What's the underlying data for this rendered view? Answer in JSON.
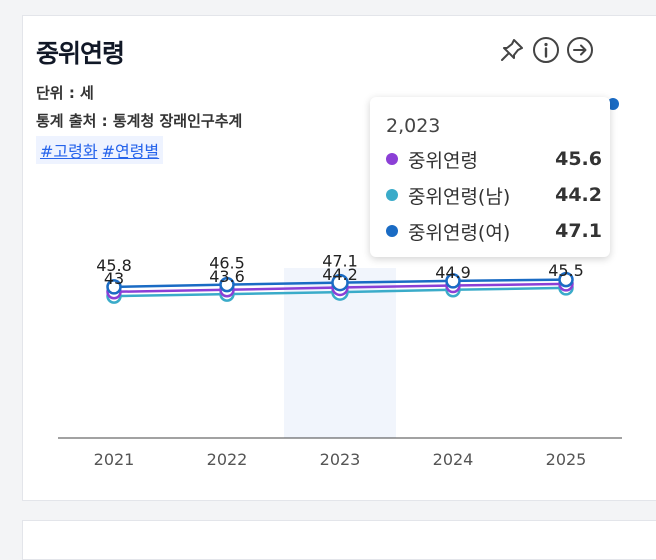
{
  "card": {
    "title": "중위연령",
    "unit": "단위 : 세",
    "source": "통계 출처 : 통계청 장래인구추계",
    "tags": [
      "#고령화",
      "#연령별"
    ]
  },
  "icons": [
    "pin-icon",
    "info-icon",
    "arrow-right-circle-icon"
  ],
  "colors": {
    "series1": "#8b3fd6",
    "series2": "#3aabc9",
    "series3": "#1a6bc4"
  },
  "tooltip": {
    "header": "2,023",
    "rows": [
      {
        "name": "중위연령",
        "value": "45.6"
      },
      {
        "name": "중위연령(남)",
        "value": "44.2"
      },
      {
        "name": "중위연령(여)",
        "value": "47.1"
      }
    ]
  },
  "chart_data": {
    "type": "line",
    "title": "중위연령",
    "categories": [
      "2021",
      "2022",
      "2023",
      "2024",
      "2025"
    ],
    "series": [
      {
        "name": "중위연령",
        "values": [
          44.3,
          44.9,
          45.6,
          46.2,
          46.7
        ]
      },
      {
        "name": "중위연령(남)",
        "values": [
          43.0,
          43.6,
          44.2,
          44.9,
          45.5
        ]
      },
      {
        "name": "중위연령(여)",
        "values": [
          45.8,
          46.5,
          47.1,
          47.6,
          48.0
        ]
      }
    ],
    "ylim": [
      0,
      55
    ],
    "highlighted_category": "2023",
    "visible_labels": [
      [
        {
          "series": 2,
          "cat": 0,
          "text": "45.8"
        },
        {
          "series": 1,
          "cat": 0,
          "text": "43"
        }
      ],
      [
        {
          "series": 2,
          "cat": 1,
          "text": "46.5"
        },
        {
          "series": 1,
          "cat": 1,
          "text": "43.6"
        }
      ],
      [
        {
          "series": 2,
          "cat": 2,
          "text": "47.1"
        },
        {
          "series": 1,
          "cat": 2,
          "text": "44.2"
        }
      ],
      [
        {
          "series": 1,
          "cat": 3,
          "text": "44.9"
        }
      ],
      [
        {
          "series": 1,
          "cat": 4,
          "text": "45.5"
        }
      ]
    ]
  }
}
